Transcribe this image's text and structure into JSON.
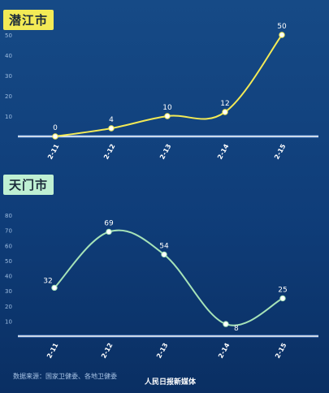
{
  "chart_data": [
    {
      "type": "line",
      "title": "潜江市",
      "categories": [
        "2-11",
        "2-12",
        "2-13",
        "2-14",
        "2-15"
      ],
      "values": [
        0,
        4,
        10,
        12,
        50
      ],
      "ylim": [
        0,
        50
      ],
      "yticks": [
        "10",
        "20",
        "30",
        "40",
        "50"
      ],
      "line_color": "#f3ea56",
      "grid": false
    },
    {
      "type": "line",
      "title": "天门市",
      "categories": [
        "2-11",
        "2-12",
        "2-13",
        "2-14",
        "2-15"
      ],
      "values": [
        32,
        69,
        54,
        8,
        25
      ],
      "ylim": [
        0,
        80
      ],
      "yticks": [
        "10",
        "20",
        "30",
        "40",
        "50",
        "60",
        "70",
        "80"
      ],
      "line_color": "#a6e3b8",
      "grid": false
    }
  ],
  "footer": {
    "source": "数据来源：国家卫健委、各地卫健委",
    "brand": "人民日报",
    "brand_suffix": "新媒体"
  }
}
